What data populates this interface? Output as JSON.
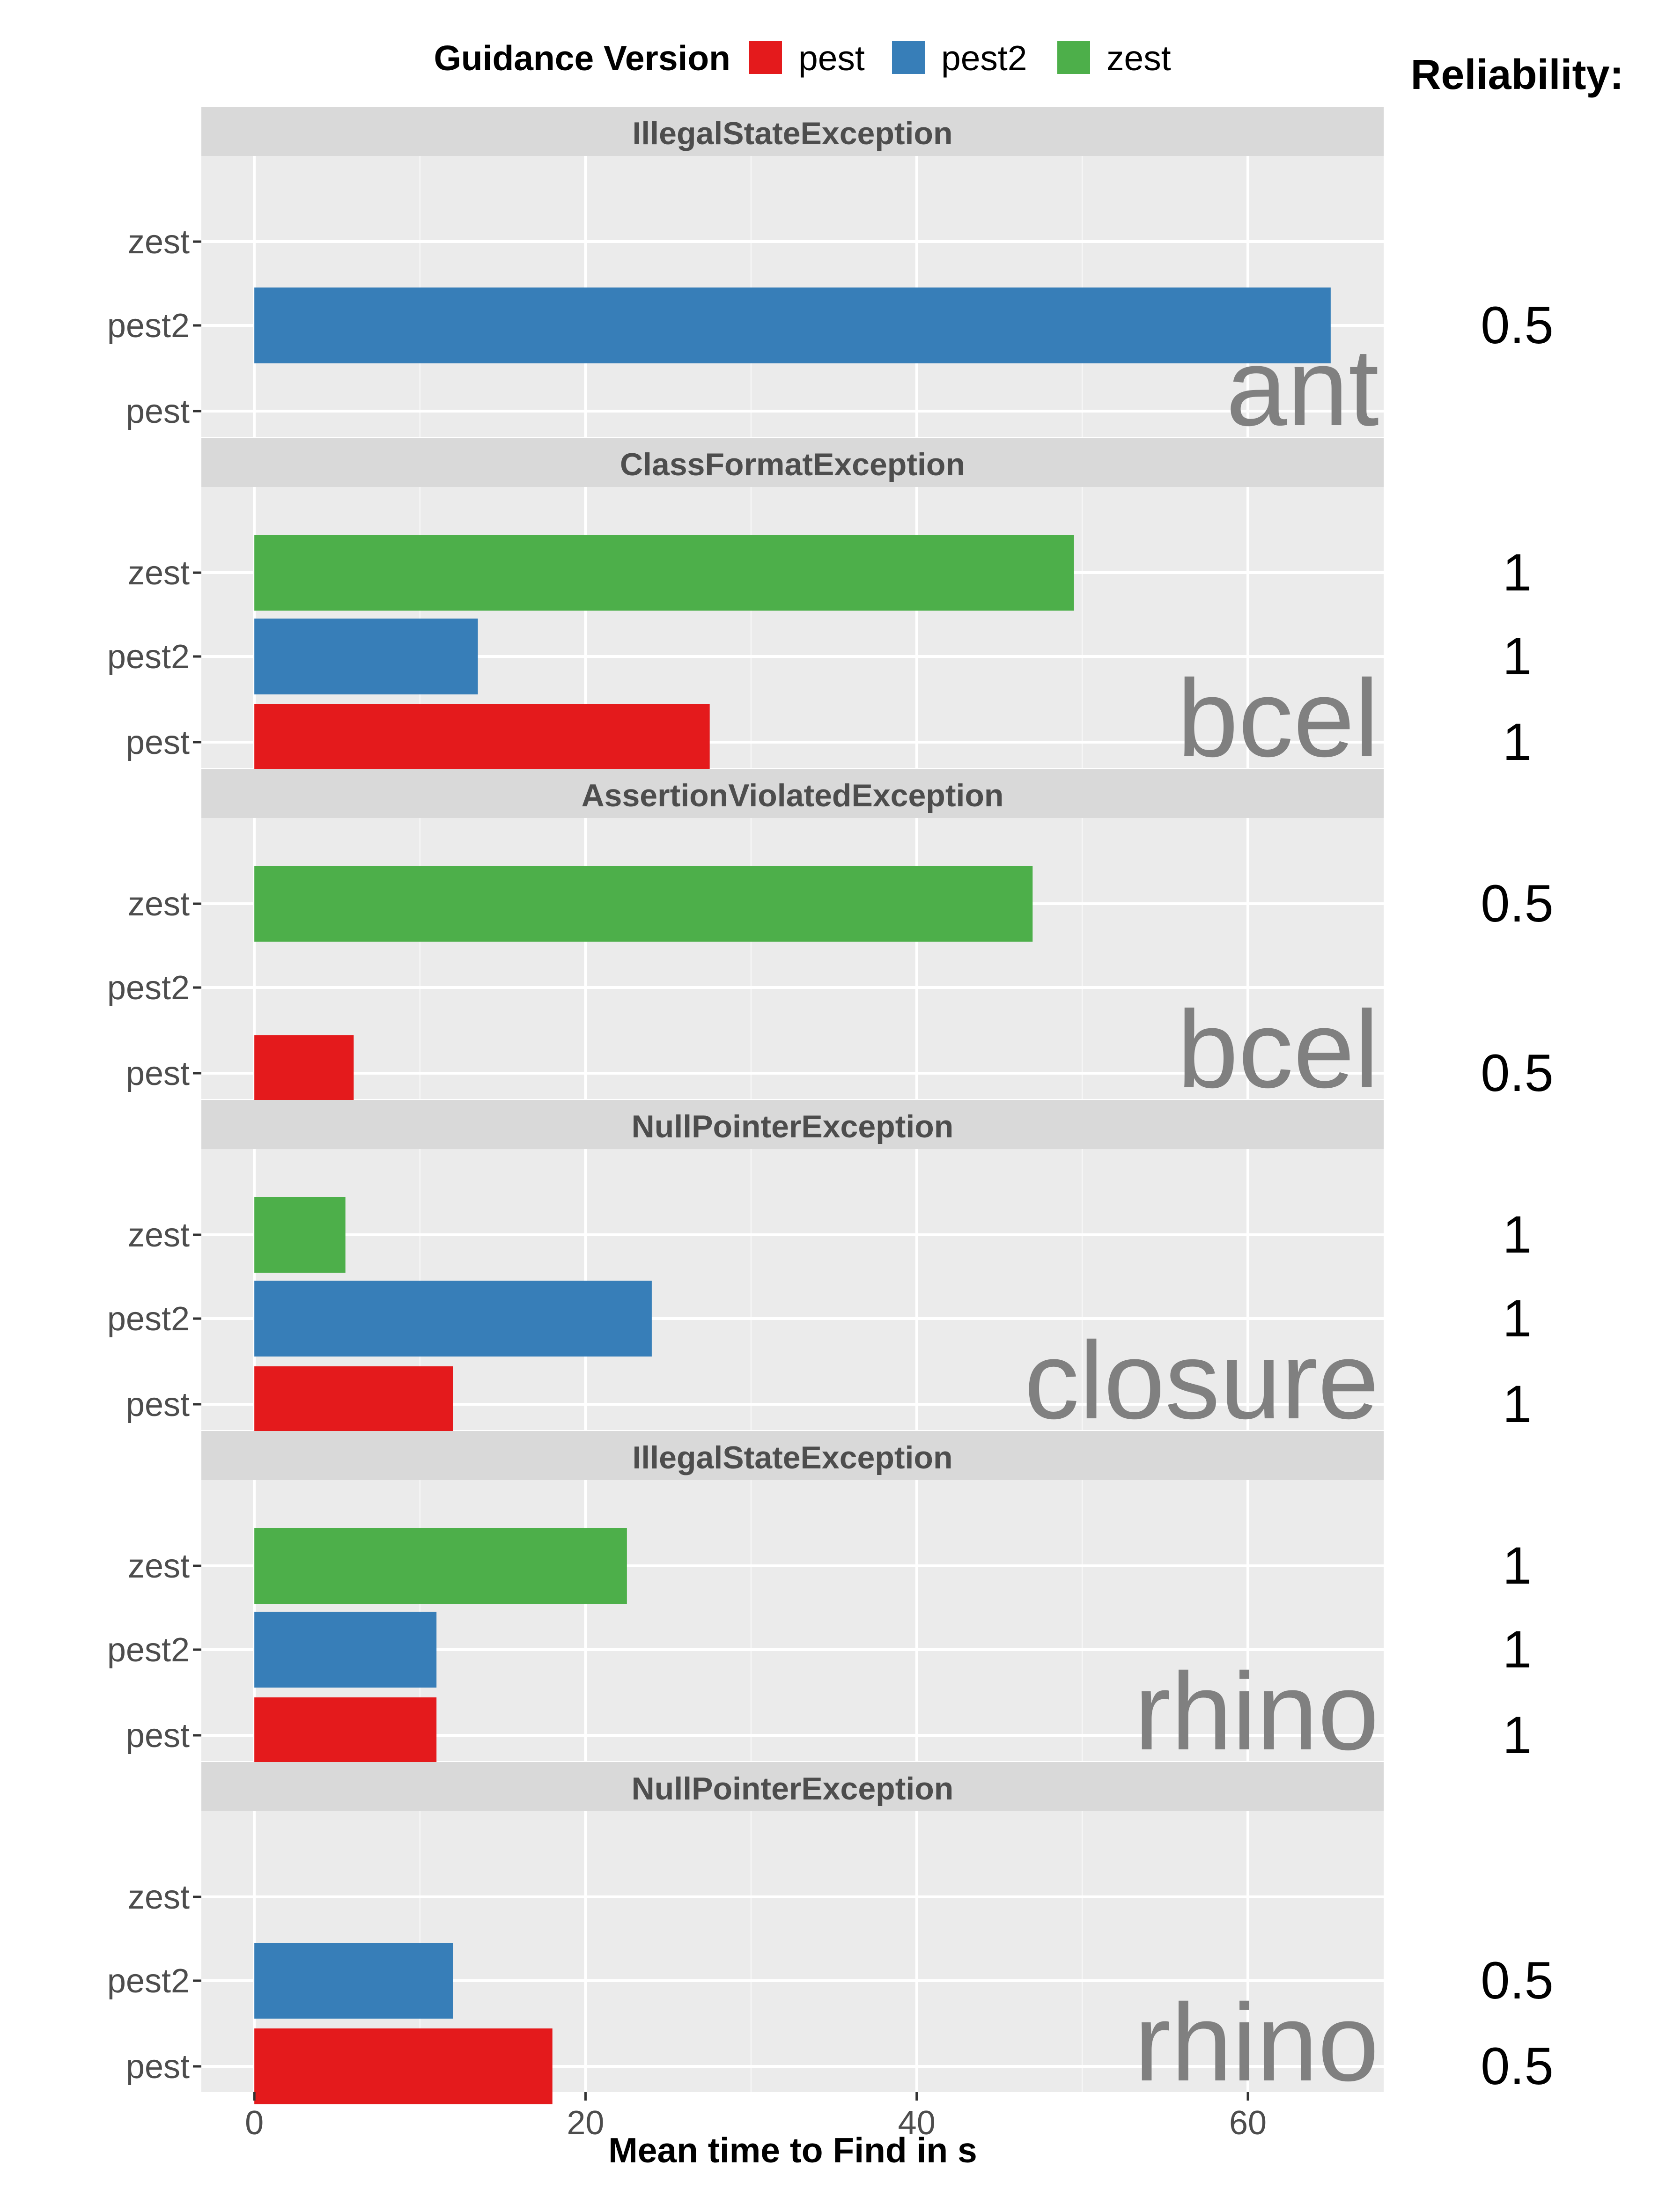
{
  "chart_data": {
    "type": "bar",
    "orientation": "horizontal",
    "xlabel": "Mean time to Find in s",
    "xlim": [
      -3.2,
      68.2
    ],
    "xticks": [
      0,
      20,
      40,
      60
    ],
    "legend": {
      "title": "Guidance Version",
      "placement": "top",
      "entries": [
        {
          "name": "pest",
          "color": "#E41A1C"
        },
        {
          "name": "pest2",
          "color": "#377EB8"
        },
        {
          "name": "zest",
          "color": "#4DAF4A"
        }
      ]
    },
    "reliability_title": "Reliability:",
    "categories": [
      "pest",
      "pest2",
      "zest"
    ],
    "panels": [
      {
        "strip": "IllegalStateException",
        "subject": "ant",
        "values": {
          "pest": null,
          "pest2": 65,
          "zest": null
        },
        "reliability": {
          "pest": "",
          "pest2": "0.5",
          "zest": ""
        }
      },
      {
        "strip": "ClassFormatException",
        "subject": "bcel",
        "values": {
          "pest": 27.5,
          "pest2": 13.5,
          "zest": 49.5
        },
        "reliability": {
          "pest": "1",
          "pest2": "1",
          "zest": "1"
        }
      },
      {
        "strip": "AssertionViolatedException",
        "subject": "bcel",
        "values": {
          "pest": 6,
          "pest2": null,
          "zest": 47
        },
        "reliability": {
          "pest": "0.5",
          "pest2": "",
          "zest": "0.5"
        }
      },
      {
        "strip": "NullPointerException",
        "subject": "closure",
        "values": {
          "pest": 12,
          "pest2": 24,
          "zest": 5.5
        },
        "reliability": {
          "pest": "1",
          "pest2": "1",
          "zest": "1"
        }
      },
      {
        "strip": "IllegalStateException",
        "subject": "rhino",
        "values": {
          "pest": 11,
          "pest2": 11,
          "zest": 22.5
        },
        "reliability": {
          "pest": "1",
          "pest2": "1",
          "zest": "1"
        }
      },
      {
        "strip": "NullPointerException",
        "subject": "rhino",
        "values": {
          "pest": 18,
          "pest2": 12,
          "zest": null
        },
        "reliability": {
          "pest": "0.5",
          "pest2": "0.5",
          "zest": ""
        }
      }
    ]
  }
}
